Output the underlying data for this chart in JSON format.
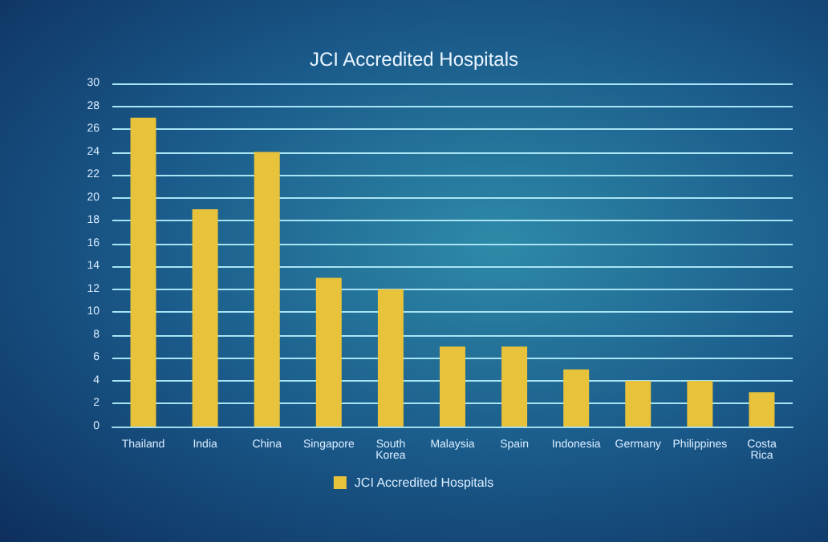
{
  "chart_data": {
    "type": "bar",
    "title": "JCI Accredited Hospitals",
    "categories": [
      "Thailand",
      "India",
      "China",
      "Singapore",
      "South\nKorea",
      "Malaysia",
      "Spain",
      "Indonesia",
      "Germany",
      "Philippines",
      "Costa\nRica"
    ],
    "series": [
      {
        "name": "JCI Accredited Hospitals",
        "color": "#e8c23a",
        "values": [
          27,
          19,
          24,
          13,
          12,
          7,
          7,
          5,
          4,
          4,
          3
        ]
      }
    ],
    "ylim": [
      0,
      30
    ],
    "yticks": [
      0,
      2,
      4,
      6,
      8,
      10,
      12,
      14,
      16,
      18,
      20,
      22,
      24,
      26,
      28,
      30
    ],
    "grid": "y",
    "legend": "bottom"
  }
}
